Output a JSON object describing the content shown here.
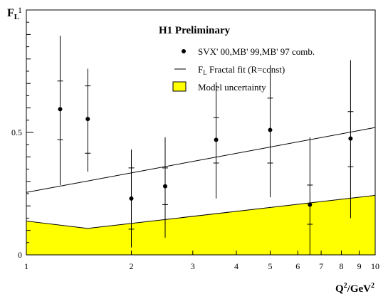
{
  "chart_data": {
    "type": "scatter",
    "title": "H1 Preliminary",
    "ylabel_main": "F",
    "ylabel_sub": "L",
    "xlabel_html": [
      "Q",
      "2",
      "/GeV",
      "2"
    ],
    "xscale": "log",
    "xlim": [
      1,
      10
    ],
    "ylim": [
      0,
      1
    ],
    "x_ticks": [
      1,
      2,
      3,
      4,
      5,
      6,
      7,
      8,
      9,
      10
    ],
    "x_tick_labels": [
      "1",
      "2",
      "3",
      "4",
      "5",
      "6",
      "7",
      "8",
      "9",
      "10"
    ],
    "y_ticks": [
      0,
      0.5,
      1
    ],
    "y_tick_labels": [
      "0",
      "0.5",
      "1"
    ],
    "legend": {
      "placement": "top-right",
      "data_label": "SVX' 00,MB' 99,MB' 97 comb.",
      "fit_label_main": "F",
      "fit_label_sub": "L",
      "fit_label_rest": " Fractal fit (R=const)",
      "band_label": "Model uncertainty"
    },
    "points": [
      {
        "x": 1.25,
        "y": 0.595,
        "y_lo": 0.285,
        "y_hi": 0.895,
        "stat_lo": 0.47,
        "stat_hi": 0.71
      },
      {
        "x": 1.5,
        "y": 0.555,
        "y_lo": 0.34,
        "y_hi": 0.76,
        "stat_lo": 0.415,
        "stat_hi": 0.69
      },
      {
        "x": 2.0,
        "y": 0.23,
        "y_lo": 0.03,
        "y_hi": 0.43,
        "stat_lo": 0.105,
        "stat_hi": 0.355
      },
      {
        "x": 2.5,
        "y": 0.28,
        "y_lo": 0.07,
        "y_hi": 0.48,
        "stat_lo": 0.205,
        "stat_hi": 0.355
      },
      {
        "x": 3.5,
        "y": 0.47,
        "y_lo": 0.23,
        "y_hi": 0.705,
        "stat_lo": 0.375,
        "stat_hi": 0.56
      },
      {
        "x": 5.0,
        "y": 0.51,
        "y_lo": 0.235,
        "y_hi": 0.775,
        "stat_lo": 0.375,
        "stat_hi": 0.64
      },
      {
        "x": 6.5,
        "y": 0.205,
        "y_lo": 0.0,
        "y_hi": 0.48,
        "stat_lo": 0.125,
        "stat_hi": 0.285
      },
      {
        "x": 8.5,
        "y": 0.475,
        "y_lo": 0.15,
        "y_hi": 0.795,
        "stat_lo": 0.36,
        "stat_hi": 0.585
      }
    ],
    "fit_line": [
      {
        "x": 1,
        "y": 0.255
      },
      {
        "x": 10,
        "y": 0.52
      }
    ],
    "uncertainty_band": {
      "upper": [
        {
          "x": 1,
          "y": 0.138
        },
        {
          "x": 1.5,
          "y": 0.108
        },
        {
          "x": 10,
          "y": 0.243
        }
      ],
      "lower": 0,
      "color": "#ffff00"
    }
  }
}
